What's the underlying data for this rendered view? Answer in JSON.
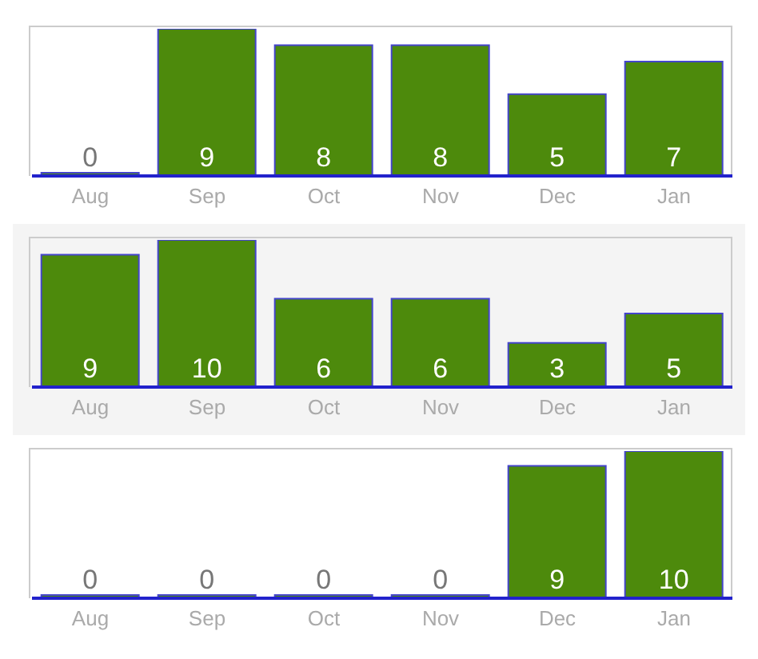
{
  "chart_data": [
    {
      "type": "bar",
      "categories": [
        "Aug",
        "Sep",
        "Oct",
        "Nov",
        "Dec",
        "Jan"
      ],
      "values": [
        0,
        9,
        8,
        8,
        5,
        7
      ],
      "color": "#4d8a0c",
      "data_labels": true
    },
    {
      "type": "bar",
      "categories": [
        "Aug",
        "Sep",
        "Oct",
        "Nov",
        "Dec",
        "Jan"
      ],
      "values": [
        9,
        10,
        6,
        6,
        3,
        5
      ],
      "color": "#4d8a0c",
      "data_labels": true
    },
    {
      "type": "bar",
      "categories": [
        "Aug",
        "Sep",
        "Oct",
        "Nov",
        "Dec",
        "Jan"
      ],
      "values": [
        0,
        0,
        0,
        0,
        9,
        10
      ],
      "color": "#4d8a0c",
      "data_labels": true
    }
  ]
}
